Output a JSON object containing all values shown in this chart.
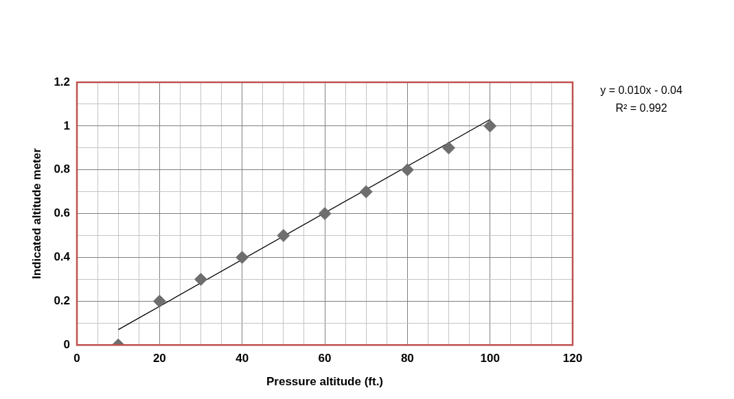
{
  "chart_data": {
    "type": "scatter",
    "xlabel": "Pressure altitude (ft.)",
    "ylabel": "Indicated altitude meter",
    "series": [
      {
        "type": "scatter",
        "marker": "diamond",
        "color": "#6e6e6e",
        "x": [
          10,
          20,
          30,
          40,
          50,
          60,
          70,
          80,
          90,
          100
        ],
        "values": [
          0,
          0.2,
          0.3,
          0.4,
          0.5,
          0.6,
          0.7,
          0.8,
          0.9,
          1.0
        ]
      },
      {
        "type": "line",
        "marker": "none",
        "color": "#000000",
        "x": [
          10,
          100
        ],
        "values": [
          0.07,
          1.03
        ]
      }
    ],
    "xlim": [
      0,
      120
    ],
    "xticks": [
      0,
      {
        "value": 5,
        "label": null
      },
      20,
      {
        "value": 15,
        "label": null
      },
      {
        "value": 10,
        "label": null
      },
      {
        "value": 25,
        "label": null
      },
      {
        "value": 30,
        "label": null
      },
      {
        "value": 35,
        "label": null
      },
      40,
      {
        "value": 45,
        "label": null
      },
      {
        "value": 50,
        "label": null
      },
      {
        "value": 55,
        "label": null
      },
      60,
      {
        "value": 65,
        "label": null
      },
      {
        "value": 70,
        "label": null
      },
      {
        "value": 75,
        "label": null
      },
      80,
      {
        "value": 85,
        "label": null
      },
      {
        "value": 90,
        "label": null
      },
      {
        "value": 95,
        "label": null
      },
      100,
      {
        "value": 105,
        "label": null
      },
      {
        "value": 110,
        "label": null
      },
      {
        "value": 115,
        "label": null
      },
      120
    ],
    "ylim": [
      0,
      1.2
    ],
    "yticks": [
      0,
      {
        "value": 0.1,
        "label": null
      },
      0.2,
      {
        "value": 0.3,
        "label": null
      },
      0.4,
      {
        "value": 0.5,
        "label": null
      },
      0.6,
      {
        "value": 0.7,
        "label": null
      },
      0.8,
      {
        "value": 0.9,
        "label": null
      },
      1,
      {
        "value": 1.1,
        "label": null
      },
      1.2
    ],
    "grid": true,
    "legend": false,
    "line_style": "solid",
    "annotations": [
      "y = 0.010x - 0.04",
      "R² = 0.992"
    ]
  }
}
